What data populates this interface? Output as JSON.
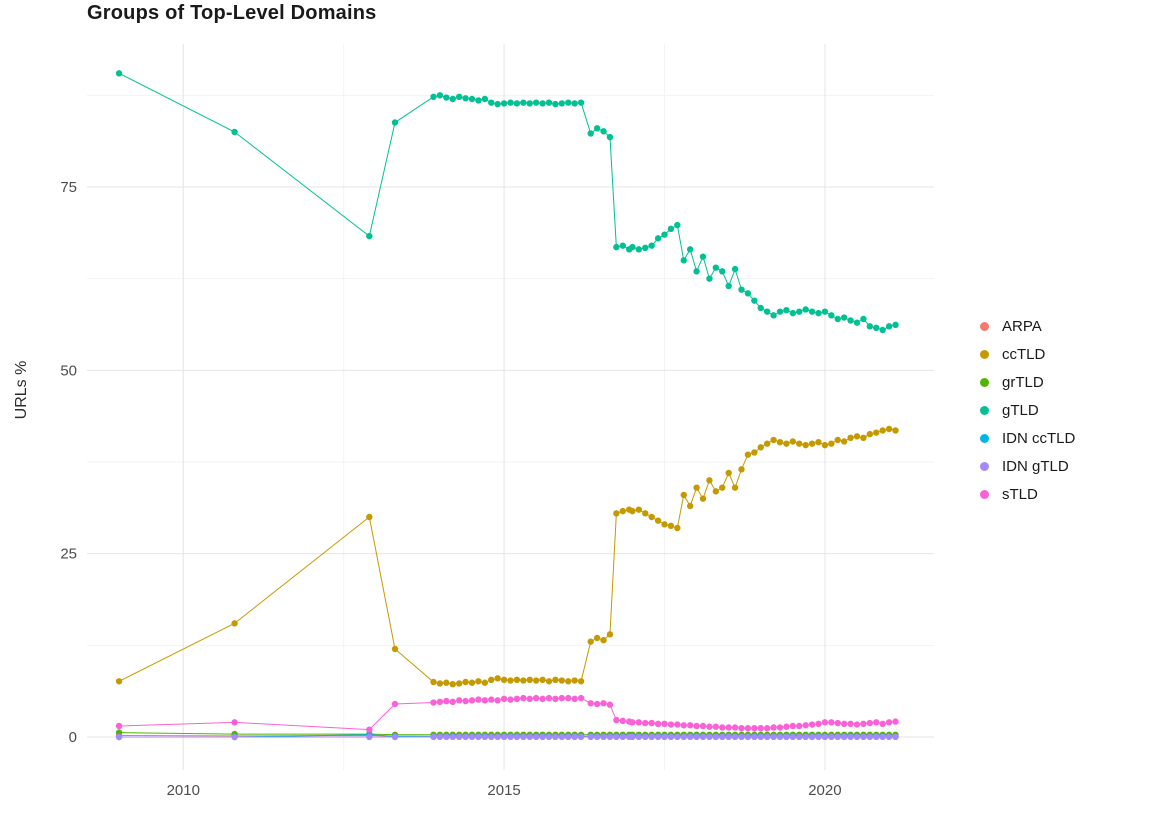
{
  "colors": {
    "background": "#ffffff",
    "grid_major": "#e4e4e4",
    "grid_minor": "#f3f3f3",
    "tick_label": "#4d4d4d",
    "title": "#1a1a1a"
  },
  "chart_data": {
    "type": "line",
    "title": "Groups of Top-Level Domains",
    "xlabel": "",
    "ylabel": "URLs %",
    "xlim": [
      2008.5,
      2021.7
    ],
    "ylim": [
      -4.5,
      94.5
    ],
    "x_ticks": [
      2010,
      2015,
      2020
    ],
    "y_ticks": [
      0,
      25,
      50,
      75
    ],
    "x_minor_ticks": [
      2012.5,
      2017.5
    ],
    "y_minor_ticks": [
      12.5,
      37.5,
      62.5,
      87.5
    ],
    "grid": true,
    "legend_position": "right",
    "marker": "circle",
    "x": [
      2009.0,
      2010.8,
      2012.9,
      2013.3,
      2013.9,
      2014.0,
      2014.1,
      2014.2,
      2014.3,
      2014.4,
      2014.5,
      2014.6,
      2014.7,
      2014.8,
      2014.9,
      2015.0,
      2015.1,
      2015.2,
      2015.3,
      2015.4,
      2015.5,
      2015.6,
      2015.7,
      2015.8,
      2015.9,
      2016.0,
      2016.1,
      2016.2,
      2016.35,
      2016.45,
      2016.55,
      2016.65,
      2016.75,
      2016.85,
      2016.95,
      2017.0,
      2017.1,
      2017.2,
      2017.3,
      2017.4,
      2017.5,
      2017.6,
      2017.7,
      2017.8,
      2017.9,
      2018.0,
      2018.1,
      2018.2,
      2018.3,
      2018.4,
      2018.5,
      2018.6,
      2018.7,
      2018.8,
      2018.9,
      2019.0,
      2019.1,
      2019.2,
      2019.3,
      2019.4,
      2019.5,
      2019.6,
      2019.7,
      2019.8,
      2019.9,
      2020.0,
      2020.1,
      2020.2,
      2020.3,
      2020.4,
      2020.5,
      2020.6,
      2020.7,
      2020.8,
      2020.9,
      2021.0,
      2021.1
    ],
    "series": [
      {
        "name": "ARPA",
        "color": "#F8766D",
        "values": [
          0.2,
          0.15,
          0.2,
          0.1,
          0.1,
          0.1,
          0.1,
          0.1,
          0.1,
          0.1,
          0.1,
          0.1,
          0.1,
          0.1,
          0.1,
          0.1,
          0.1,
          0.1,
          0.1,
          0.1,
          0.1,
          0.1,
          0.1,
          0.1,
          0.1,
          0.1,
          0.1,
          0.1,
          0.1,
          0.1,
          0.1,
          0.1,
          0.1,
          0.1,
          0.1,
          0.1,
          0.1,
          0.1,
          0.1,
          0.1,
          0.1,
          0.1,
          0.1,
          0.1,
          0.1,
          0.1,
          0.1,
          0.1,
          0.1,
          0.1,
          0.1,
          0.1,
          0.1,
          0.1,
          0.1,
          0.1,
          0.1,
          0.1,
          0.1,
          0.1,
          0.1,
          0.1,
          0.1,
          0.1,
          0.1,
          0.1,
          0.1,
          0.1,
          0.1,
          0.1,
          0.1,
          0.1,
          0.1,
          0.1,
          0.1,
          0.1,
          0.1
        ]
      },
      {
        "name": "ccTLD",
        "color": "#C49A00",
        "values": [
          7.6,
          15.5,
          30.0,
          12.0,
          7.5,
          7.3,
          7.4,
          7.2,
          7.3,
          7.5,
          7.4,
          7.6,
          7.4,
          7.8,
          8.0,
          7.8,
          7.7,
          7.8,
          7.7,
          7.8,
          7.7,
          7.8,
          7.6,
          7.8,
          7.7,
          7.6,
          7.7,
          7.6,
          13.0,
          13.5,
          13.2,
          14.0,
          30.5,
          30.8,
          31.0,
          30.8,
          31.0,
          30.5,
          30.0,
          29.5,
          29.0,
          28.8,
          28.5,
          33.0,
          31.5,
          34.0,
          32.5,
          35.0,
          33.5,
          34.0,
          36.0,
          34.0,
          36.5,
          38.5,
          38.8,
          39.5,
          40.0,
          40.5,
          40.2,
          40.0,
          40.3,
          40.0,
          39.8,
          40.0,
          40.2,
          39.8,
          40.0,
          40.5,
          40.3,
          40.8,
          41.0,
          40.8,
          41.3,
          41.5,
          41.8,
          42.0,
          41.8
        ]
      },
      {
        "name": "grTLD",
        "color": "#53B400",
        "values": [
          0.6,
          0.4,
          0.4,
          0.3,
          0.3,
          0.3,
          0.3,
          0.3,
          0.3,
          0.3,
          0.3,
          0.3,
          0.3,
          0.3,
          0.3,
          0.3,
          0.3,
          0.3,
          0.3,
          0.3,
          0.3,
          0.3,
          0.3,
          0.3,
          0.3,
          0.3,
          0.3,
          0.3,
          0.3,
          0.3,
          0.3,
          0.3,
          0.3,
          0.3,
          0.3,
          0.3,
          0.3,
          0.3,
          0.3,
          0.3,
          0.3,
          0.3,
          0.3,
          0.3,
          0.3,
          0.3,
          0.3,
          0.3,
          0.3,
          0.3,
          0.3,
          0.3,
          0.3,
          0.3,
          0.3,
          0.3,
          0.3,
          0.3,
          0.3,
          0.3,
          0.3,
          0.3,
          0.3,
          0.3,
          0.3,
          0.3,
          0.3,
          0.3,
          0.3,
          0.3,
          0.3,
          0.3,
          0.3,
          0.3,
          0.3,
          0.3,
          0.3
        ]
      },
      {
        "name": "gTLD",
        "color": "#00C094",
        "values": [
          90.5,
          82.5,
          68.3,
          83.8,
          87.3,
          87.5,
          87.2,
          87.0,
          87.3,
          87.1,
          87.0,
          86.8,
          87.0,
          86.5,
          86.3,
          86.4,
          86.5,
          86.4,
          86.5,
          86.4,
          86.5,
          86.4,
          86.5,
          86.3,
          86.4,
          86.5,
          86.4,
          86.5,
          82.3,
          83.0,
          82.6,
          81.8,
          66.8,
          67.0,
          66.5,
          66.8,
          66.5,
          66.7,
          67.0,
          68.0,
          68.5,
          69.3,
          69.8,
          65.0,
          66.5,
          63.5,
          65.5,
          62.5,
          64.0,
          63.5,
          61.5,
          63.8,
          61.0,
          60.5,
          59.5,
          58.5,
          58.0,
          57.5,
          58.0,
          58.2,
          57.8,
          58.0,
          58.3,
          58.0,
          57.8,
          58.0,
          57.5,
          57.0,
          57.2,
          56.8,
          56.5,
          57.0,
          56.0,
          55.8,
          55.5,
          56.0,
          56.2
        ]
      },
      {
        "name": "IDN ccTLD",
        "color": "#00B6EB",
        "values": [
          0.0,
          0.0,
          0.3,
          0.1,
          0.05,
          0.05,
          0.05,
          0.05,
          0.05,
          0.05,
          0.05,
          0.05,
          0.05,
          0.05,
          0.05,
          0.05,
          0.05,
          0.05,
          0.05,
          0.05,
          0.05,
          0.05,
          0.05,
          0.05,
          0.05,
          0.05,
          0.05,
          0.05,
          0.05,
          0.05,
          0.05,
          0.05,
          0.05,
          0.05,
          0.05,
          0.05,
          0.05,
          0.05,
          0.05,
          0.05,
          0.05,
          0.05,
          0.05,
          0.05,
          0.05,
          0.05,
          0.05,
          0.05,
          0.05,
          0.05,
          0.05,
          0.05,
          0.05,
          0.05,
          0.05,
          0.05,
          0.05,
          0.05,
          0.05,
          0.05,
          0.05,
          0.05,
          0.05,
          0.05,
          0.05,
          0.05,
          0.05,
          0.05,
          0.05,
          0.05,
          0.05,
          0.05,
          0.05,
          0.05,
          0.05,
          0.05,
          0.05
        ]
      },
      {
        "name": "IDN gTLD",
        "color": "#A58AFF",
        "values": [
          0.0,
          0.0,
          0.0,
          0.0,
          0.02,
          0.02,
          0.02,
          0.02,
          0.02,
          0.02,
          0.02,
          0.02,
          0.02,
          0.02,
          0.02,
          0.02,
          0.02,
          0.02,
          0.02,
          0.02,
          0.02,
          0.02,
          0.02,
          0.02,
          0.02,
          0.02,
          0.02,
          0.02,
          0.02,
          0.02,
          0.02,
          0.02,
          0.02,
          0.02,
          0.02,
          0.02,
          0.02,
          0.02,
          0.02,
          0.02,
          0.02,
          0.02,
          0.02,
          0.02,
          0.02,
          0.02,
          0.02,
          0.02,
          0.02,
          0.02,
          0.02,
          0.02,
          0.02,
          0.02,
          0.02,
          0.02,
          0.02,
          0.02,
          0.02,
          0.02,
          0.02,
          0.02,
          0.02,
          0.02,
          0.02,
          0.02,
          0.02,
          0.02,
          0.02,
          0.02,
          0.02,
          0.02,
          0.02,
          0.02,
          0.02,
          0.02,
          0.02
        ]
      },
      {
        "name": "sTLD",
        "color": "#FB61D7",
        "values": [
          1.5,
          2.0,
          1.0,
          4.5,
          4.7,
          4.8,
          4.9,
          4.8,
          5.0,
          4.9,
          5.0,
          5.1,
          5.0,
          5.1,
          5.0,
          5.2,
          5.1,
          5.2,
          5.3,
          5.2,
          5.3,
          5.2,
          5.3,
          5.2,
          5.3,
          5.3,
          5.2,
          5.3,
          4.6,
          4.5,
          4.6,
          4.4,
          2.3,
          2.2,
          2.1,
          2.0,
          2.0,
          1.9,
          1.9,
          1.8,
          1.8,
          1.7,
          1.7,
          1.6,
          1.6,
          1.5,
          1.5,
          1.4,
          1.4,
          1.3,
          1.3,
          1.3,
          1.2,
          1.2,
          1.2,
          1.2,
          1.2,
          1.3,
          1.3,
          1.4,
          1.5,
          1.5,
          1.6,
          1.7,
          1.8,
          2.0,
          2.0,
          1.9,
          1.8,
          1.8,
          1.7,
          1.8,
          1.9,
          2.0,
          1.8,
          2.0,
          2.1
        ]
      }
    ]
  }
}
